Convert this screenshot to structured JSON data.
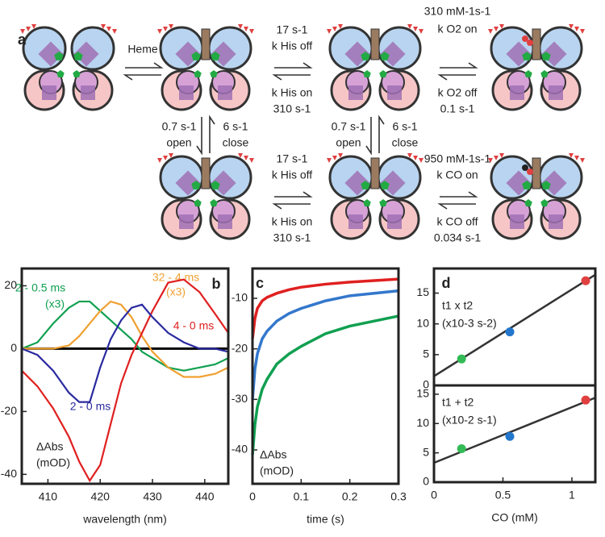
{
  "diagram": {
    "labels": [
      "a",
      "Heme",
      "17 s-1",
      "k His off",
      "k His on",
      "310 s-1",
      "310 mM-1s-1",
      "k O2 on",
      "k O2 off",
      "0.1 s-1",
      "0.7 s-1",
      "open",
      "6 s-1",
      "close",
      "0.7 s-1",
      "open",
      "6 s-1",
      "close",
      "17 s-1",
      "k His off",
      "k His on",
      "310 s-1",
      "950 mM-1s-1",
      "k CO on",
      "k CO off",
      "0.034 s-1"
    ]
  },
  "chart_data": [
    {
      "type": "line",
      "label": "b",
      "xlabel": "wavelength (nm)",
      "ylabel": [
        "ΔAbs",
        "(mOD)"
      ],
      "x": [
        405,
        408,
        411,
        414,
        416,
        418,
        420,
        422,
        424,
        426,
        428,
        430,
        433,
        436,
        439,
        442,
        444.5
      ],
      "series": [
        {
          "name": "2 - 0.5 ms",
          "scale_label": "(x3)",
          "color": "#10a050",
          "values": [
            0,
            2,
            8,
            13,
            15,
            15,
            12,
            9,
            6,
            3,
            -1,
            -3,
            -6,
            -7,
            -6,
            -5,
            -3
          ]
        },
        {
          "name": "32 - 4 ms",
          "scale_label": "(x3)",
          "color": "#f0a030",
          "values": [
            0,
            0,
            0,
            1,
            4,
            8,
            12,
            15,
            14,
            10,
            4,
            -1,
            -6,
            -9,
            -9,
            -8,
            -6
          ]
        },
        {
          "name": "4 - 0 ms",
          "color": "#e02020",
          "values": [
            -7,
            -12,
            -19,
            -28,
            -36,
            -42,
            -37,
            -24,
            -11,
            -2,
            5,
            12,
            21,
            22,
            18,
            11,
            5
          ]
        },
        {
          "name": "2 - 0 ms",
          "color": "#2a2aa0",
          "values": [
            0,
            -2,
            -7,
            -14,
            -17,
            -17,
            -6,
            3,
            9,
            13,
            14,
            10,
            5,
            2,
            0,
            0,
            -1
          ]
        }
      ],
      "xlim": [
        405,
        444.5
      ],
      "ylim": [
        -43,
        25.5
      ],
      "xticks": [
        410,
        420,
        430,
        440
      ],
      "yticks": [
        -40,
        -20,
        0,
        20
      ],
      "zero_line": true
    },
    {
      "type": "line",
      "label": "c",
      "xlabel": "time (s)",
      "ylabel": [
        "ΔAbs",
        "(mOD)"
      ],
      "x": [
        0,
        0.005,
        0.01,
        0.02,
        0.03,
        0.05,
        0.075,
        0.1,
        0.15,
        0.2,
        0.25,
        0.3
      ],
      "series": [
        {
          "color": "#e02020",
          "values": [
            -18,
            -14,
            -12,
            -10.5,
            -9.8,
            -9,
            -8.3,
            -7.8,
            -7.2,
            -6.8,
            -6.5,
            -6.2
          ]
        },
        {
          "color": "#3377cc",
          "values": [
            -30,
            -24,
            -21,
            -18,
            -16.5,
            -14.5,
            -13,
            -12,
            -10.5,
            -9.5,
            -9,
            -8.5
          ]
        },
        {
          "color": "#10a050",
          "values": [
            -41,
            -35,
            -31.5,
            -28,
            -26,
            -23,
            -21,
            -19.5,
            -17,
            -15.5,
            -14.5,
            -13.5
          ]
        }
      ],
      "xlim": [
        0,
        0.3
      ],
      "ylim": [
        -46.7,
        -4.1
      ],
      "xticks": [
        0,
        0.1,
        0.2,
        0.3
      ],
      "yticks": [
        -40,
        -30,
        -20,
        -10
      ]
    },
    {
      "type": "scatter",
      "label": "d",
      "ylabel": [
        "t1 x t2",
        "(x10-3 s-2)"
      ],
      "x": [
        0.2,
        0.55,
        1.1
      ],
      "values": [
        4.3,
        8.7,
        17
      ],
      "colors": [
        "#33bb55",
        "#2277cc",
        "#e04040"
      ],
      "fit_line": {
        "x": [
          0,
          1.17
        ],
        "y": [
          1.5,
          18
        ]
      },
      "xlim": [
        0,
        1.17
      ],
      "ylim": [
        0,
        19
      ],
      "yticks": [
        0,
        5,
        10,
        15
      ]
    },
    {
      "type": "scatter",
      "xlabel": "CO (mM)",
      "ylabel": [
        "t1 + t2",
        "(x10-2 s-1)"
      ],
      "x": [
        0.2,
        0.55,
        1.1
      ],
      "values": [
        5.7,
        7.8,
        14
      ],
      "colors": [
        "#33bb55",
        "#2277cc",
        "#e04040"
      ],
      "fit_line": {
        "x": [
          0,
          1.17
        ],
        "y": [
          3.3,
          14.4
        ]
      },
      "xlim": [
        0,
        1.17
      ],
      "ylim": [
        0,
        16.5
      ],
      "xticks": [
        0,
        {
          "value": 0.5,
          "label": "0.5"
        },
        1
      ],
      "yticks": [
        0,
        5,
        10,
        15
      ]
    }
  ]
}
